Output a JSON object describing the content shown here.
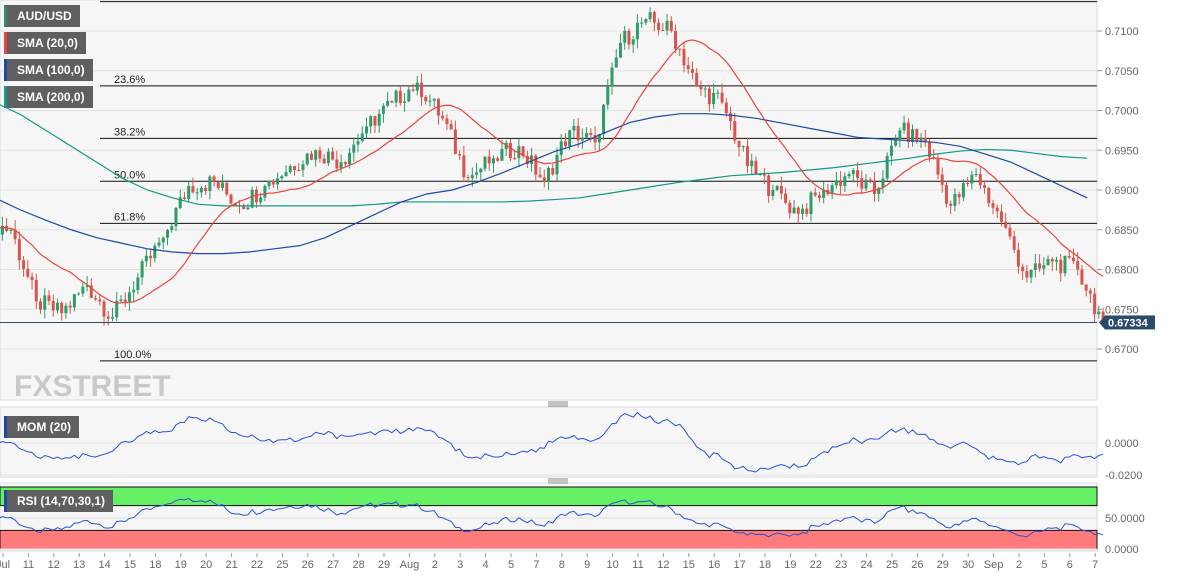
{
  "chart_data": {
    "type": "candlestick",
    "symbol": "AUD/USD",
    "watermark": "FXSTREET",
    "indicators": [
      {
        "label": "SMA (20,0)",
        "color": "#e8453c"
      },
      {
        "label": "SMA (100,0)",
        "color": "#1f48a8"
      },
      {
        "label": "SMA (200,0)",
        "color": "#139a82"
      }
    ],
    "symbol_color": "#2e8b74",
    "x_labels": [
      "Jul",
      "11",
      "12",
      "13",
      "14",
      "15",
      "18",
      "19",
      "20",
      "21",
      "22",
      "25",
      "26",
      "27",
      "28",
      "29",
      "Aug",
      "2",
      "3",
      "4",
      "5",
      "7",
      "8",
      "9",
      "10",
      "11",
      "12",
      "15",
      "16",
      "17",
      "18",
      "19",
      "22",
      "23",
      "24",
      "25",
      "26",
      "29",
      "30",
      "Sep",
      "2",
      "5",
      "6",
      "7"
    ],
    "daily_close": [
      0.685,
      0.676,
      0.6745,
      0.678,
      0.674,
      0.679,
      0.684,
      0.6905,
      0.691,
      0.688,
      0.6905,
      0.693,
      0.695,
      0.6935,
      0.698,
      0.701,
      0.7035,
      0.699,
      0.6915,
      0.694,
      0.6955,
      0.691,
      0.6975,
      0.696,
      0.7085,
      0.7115,
      0.71,
      0.703,
      0.701,
      0.693,
      0.69,
      0.687,
      0.69,
      0.692,
      0.6895,
      0.6975,
      0.696,
      0.688,
      0.692,
      0.686,
      0.679,
      0.681,
      0.68,
      0.67334
    ],
    "sma200": [
      0.701,
      0.6995,
      0.6975,
      0.6955,
      0.6935,
      0.6915,
      0.69,
      0.689,
      0.6882,
      0.688,
      0.688,
      0.688,
      0.688,
      0.688,
      0.688,
      0.6882,
      0.6885,
      0.6885,
      0.6885,
      0.6885,
      0.6885,
      0.6886,
      0.6888,
      0.689,
      0.6895,
      0.69,
      0.6905,
      0.691,
      0.6914,
      0.6918,
      0.692,
      0.6922,
      0.6925,
      0.6928,
      0.6932,
      0.6936,
      0.694,
      0.6945,
      0.6949,
      0.6951,
      0.695,
      0.6946,
      0.6942,
      0.694
    ],
    "sma100": [
      0.689,
      0.6875,
      0.6862,
      0.685,
      0.684,
      0.6833,
      0.6826,
      0.6822,
      0.682,
      0.682,
      0.6822,
      0.6826,
      0.683,
      0.684,
      0.6855,
      0.687,
      0.6885,
      0.6895,
      0.69,
      0.691,
      0.6922,
      0.6935,
      0.6948,
      0.6958,
      0.6972,
      0.6985,
      0.6992,
      0.6996,
      0.6996,
      0.6994,
      0.699,
      0.6984,
      0.6978,
      0.6972,
      0.6966,
      0.6964,
      0.6962,
      0.696,
      0.6955,
      0.6945,
      0.6935,
      0.692,
      0.6905,
      0.689
    ],
    "y_ticks": [
      "0.7100",
      "0.7050",
      "0.7000",
      "0.6950",
      "0.6900",
      "0.6850",
      "0.6800",
      "0.6750",
      "0.6700"
    ],
    "ylim": [
      0.6685,
      0.7137
    ],
    "fibonacci": [
      {
        "label": "23.6%",
        "value": 0.7031
      },
      {
        "label": "38.2%",
        "value": 0.6965
      },
      {
        "label": "50.0%",
        "value": 0.6911
      },
      {
        "label": "61.8%",
        "value": 0.6858
      },
      {
        "label": "100.0%",
        "value": 0.6685
      }
    ],
    "fib_top": 0.7137,
    "current_price": "0.67334",
    "current_value": 0.67334,
    "mom": {
      "label": "MOM (20)",
      "ticks": [
        "0.0000",
        "-0.0200"
      ]
    },
    "rsi": {
      "label": "RSI (14,70,30,1)",
      "ticks": [
        "50.0000",
        "0.0000"
      ],
      "overbought": 70,
      "oversold": 30
    }
  }
}
